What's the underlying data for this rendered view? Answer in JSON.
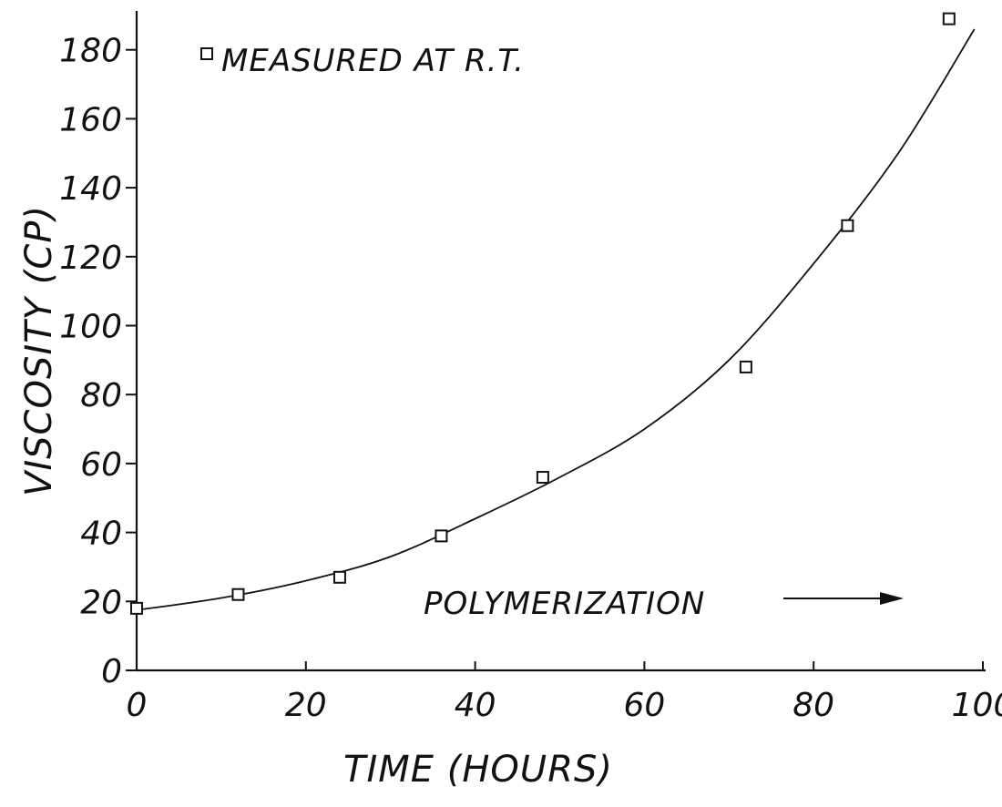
{
  "chart_data": {
    "type": "scatter",
    "title": "",
    "xlabel": "TIME (HOURS)",
    "ylabel": "VISCOSITY (CP)",
    "xlim": [
      0,
      100
    ],
    "ylim": [
      0,
      190
    ],
    "xticks": [
      0,
      20,
      40,
      60,
      80,
      100
    ],
    "xtick_labels": [
      "0",
      "20",
      "40",
      "60",
      "80",
      "100"
    ],
    "yticks": [
      0,
      20,
      40,
      60,
      80,
      100,
      120,
      140,
      160,
      180
    ],
    "ytick_labels": [
      "0",
      "20",
      "40",
      "60",
      "80",
      "100",
      "120",
      "140",
      "160",
      "180"
    ],
    "grid": false,
    "legend": {
      "position": "top-left",
      "marker": "square",
      "label": "MEASURED AT R.T."
    },
    "series": [
      {
        "name": "MEASURED AT R.T.",
        "marker": "square",
        "x": [
          0,
          12,
          24,
          36,
          48,
          72,
          84,
          96
        ],
        "y": [
          18,
          22,
          27,
          39,
          56,
          88,
          129,
          189
        ]
      }
    ],
    "fit_curve": {
      "type": "exponential",
      "x": [
        0,
        10,
        20,
        30,
        40,
        50,
        60,
        70,
        80,
        90,
        99
      ],
      "y": [
        17.5,
        21,
        26,
        33,
        44,
        56,
        70,
        90,
        118,
        150,
        186
      ]
    },
    "annotation": {
      "text": "POLYMERIZATION",
      "arrow": "right"
    }
  }
}
